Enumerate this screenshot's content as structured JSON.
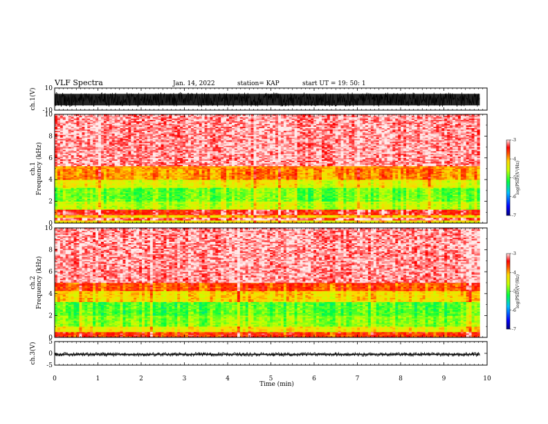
{
  "header": {
    "title": "VLF Spectra",
    "date": "Jan. 14, 2022",
    "station": "station= KAP",
    "start_ut": "start UT =   19: 50: 1"
  },
  "chart_data": [
    {
      "type": "line",
      "panel": "ch1-waveform",
      "ylabel": "ch.1(V)",
      "ylim": [
        -10,
        10
      ],
      "yticks": [
        {
          "v": 10,
          "label": "10"
        },
        {
          "v": -10,
          "label": "-10"
        }
      ],
      "xlim": [
        0,
        10
      ],
      "data_end": 9.83,
      "line_color": "#000000",
      "fill_band": [
        -7,
        6
      ]
    },
    {
      "type": "heatmap",
      "panel": "ch1-spectrogram",
      "ylabel": "ch.1\nFrequency (kHz)",
      "ylim": [
        0,
        10
      ],
      "yticks": [
        0,
        2,
        4,
        6,
        8,
        10
      ],
      "xlim": [
        0,
        10
      ],
      "data_end": 9.83,
      "colorbar": {
        "label": "log(PSD)(V²/Hz)",
        "range": [
          -7,
          -3
        ],
        "ticks": [
          "-3",
          "-4",
          "-5",
          "-6",
          "-7"
        ]
      },
      "bands": [
        {
          "from": 0,
          "to": 0.3,
          "level": -4.3
        },
        {
          "from": 0.3,
          "to": 0.45,
          "level": -3.2
        },
        {
          "from": 0.45,
          "to": 0.75,
          "level": -4.1
        },
        {
          "from": 0.75,
          "to": 1.2,
          "level": -3.4
        },
        {
          "from": 1.2,
          "to": 2.0,
          "level": -4.6
        },
        {
          "from": 2.0,
          "to": 3.2,
          "level": -4.9
        },
        {
          "from": 3.2,
          "to": 4.0,
          "level": -4.4
        },
        {
          "from": 4.0,
          "to": 5.2,
          "level": -3.9
        },
        {
          "from": 5.2,
          "to": 10.0,
          "level": -3.15
        }
      ]
    },
    {
      "type": "heatmap",
      "panel": "ch2-spectrogram",
      "ylabel": "ch.2\nFrequency (kHz)",
      "ylim": [
        0,
        10
      ],
      "yticks": [
        0,
        2,
        4,
        6,
        8,
        10
      ],
      "xlim": [
        0,
        10
      ],
      "data_end": 9.83,
      "colorbar": {
        "label": "log(PSD)(V²/Hz)",
        "range": [
          -7,
          -3
        ],
        "ticks": [
          "-3",
          "-4",
          "-5",
          "-6",
          "-7"
        ]
      },
      "bands": [
        {
          "from": 0,
          "to": 0.5,
          "level": -3.6
        },
        {
          "from": 0.5,
          "to": 1.0,
          "level": -4.3
        },
        {
          "from": 1.0,
          "to": 2.0,
          "level": -4.8
        },
        {
          "from": 2.0,
          "to": 3.2,
          "level": -5.0
        },
        {
          "from": 3.2,
          "to": 4.2,
          "level": -4.2
        },
        {
          "from": 4.2,
          "to": 5.0,
          "level": -3.7
        },
        {
          "from": 5.0,
          "to": 10.0,
          "level": -3.15
        }
      ]
    },
    {
      "type": "line",
      "panel": "ch3-waveform",
      "ylabel": "ch.3(V)",
      "ylim": [
        -5,
        5
      ],
      "yticks": [
        {
          "v": 5,
          "label": "5"
        },
        {
          "v": 0,
          "label": "0"
        },
        {
          "v": -5,
          "label": "-5"
        }
      ],
      "xlim": [
        0,
        10
      ],
      "data_end": 9.83,
      "line_color": "#000000",
      "fill_band": [
        -1.3,
        0.4
      ],
      "xlabel": "Time (min)",
      "xticks": [
        0,
        1,
        2,
        3,
        4,
        5,
        6,
        7,
        8,
        9,
        10
      ]
    }
  ]
}
